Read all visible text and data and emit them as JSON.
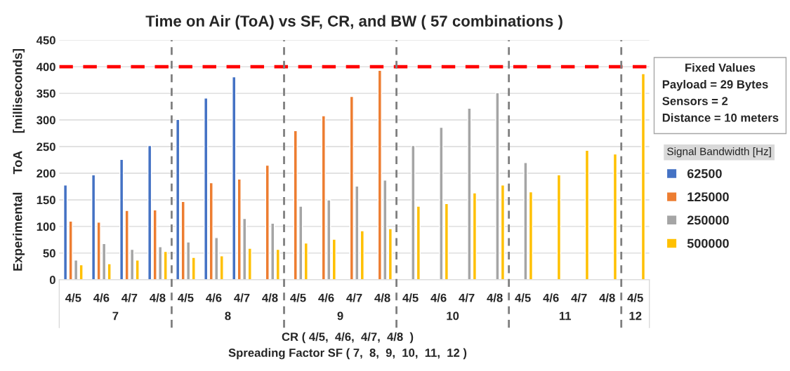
{
  "chart_data": {
    "type": "bar",
    "title": "Time on Air (ToA) vs SF, CR, and BW ( 57 combinations )",
    "xlabel": "CR ( 4/5,  4/6,  4/7,  4/8  )\nSpreading Factor SF ( 7,  8,  9,  10,  11,  12 )",
    "ylabel": "Experimental     ToA     [milliseconds]",
    "legend_title": "Signal Bandwidth [Hz]",
    "categories": [
      "4/5",
      "4/6",
      "4/7",
      "4/8",
      "4/5",
      "4/6",
      "4/7",
      "4/8",
      "4/5",
      "4/6",
      "4/7",
      "4/8",
      "4/5",
      "4/6",
      "4/7",
      "4/8",
      "4/5",
      "4/6",
      "4/7",
      "4/8",
      "4/5"
    ],
    "series": [
      {
        "name": "62500",
        "color": "#4472c4",
        "values": [
          178,
          197,
          226,
          252,
          301,
          341,
          381,
          null,
          null,
          null,
          null,
          null,
          null,
          null,
          null,
          null,
          null,
          null,
          null,
          null,
          null
        ]
      },
      {
        "name": "125000",
        "color": "#ed7d31",
        "values": [
          110,
          108,
          130,
          131,
          147,
          182,
          189,
          215,
          280,
          308,
          344,
          393,
          null,
          null,
          null,
          null,
          null,
          null,
          null,
          null,
          null
        ]
      },
      {
        "name": "250000",
        "color": "#a5a5a5",
        "values": [
          37,
          68,
          57,
          62,
          71,
          79,
          115,
          106,
          138,
          150,
          176,
          187,
          252,
          286,
          322,
          351,
          220,
          null,
          null,
          null,
          null
        ]
      },
      {
        "name": "500000",
        "color": "#ffc000",
        "values": [
          28,
          30,
          37,
          53,
          42,
          45,
          59,
          57,
          69,
          76,
          92,
          96,
          138,
          143,
          163,
          178,
          165,
          197,
          243,
          236,
          387
        ]
      }
    ],
    "ylim": [
      0,
      450
    ],
    "yticks": [
      0,
      50,
      100,
      150,
      200,
      250,
      300,
      350,
      400,
      450
    ],
    "grid": "y",
    "legend": "right",
    "ref_lines": [
      {
        "axis": "y",
        "value": 400,
        "color": "#ff0000",
        "line_style": "dashed"
      }
    ],
    "annotations": [
      "7",
      "8",
      "9",
      "10",
      "11",
      "12",
      "Fixed Values",
      "Payload = 29 Bytes",
      "Sensors = 2",
      "Distance = 10 meters"
    ]
  }
}
